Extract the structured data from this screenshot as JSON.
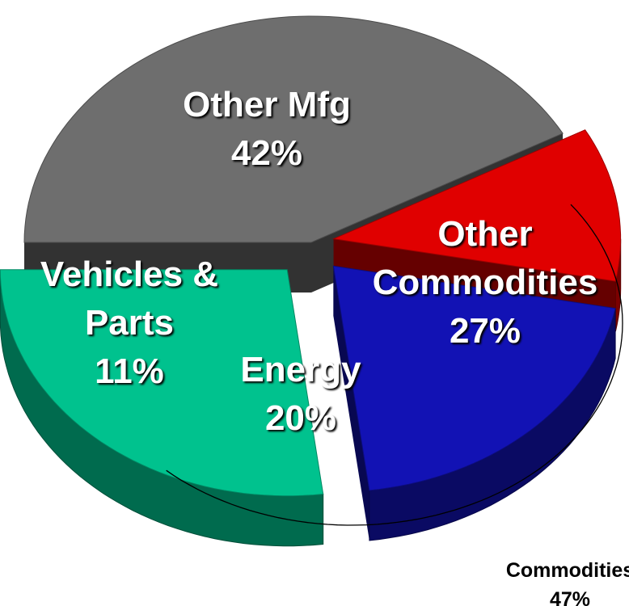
{
  "chart_data": {
    "type": "pie",
    "categories": [
      "Other Mfg",
      "Vehicles & Parts",
      "Energy",
      "Other Commodities"
    ],
    "values": [
      42,
      11,
      20,
      27
    ],
    "value_labels": [
      "42%",
      "11%",
      "20%",
      "27%"
    ],
    "colors": [
      "#6e6e6e",
      "#e00000",
      "#1212b4",
      "#00c28e"
    ],
    "annotation": {
      "label": "Commodities",
      "value": 47,
      "value_label": "47%"
    }
  }
}
